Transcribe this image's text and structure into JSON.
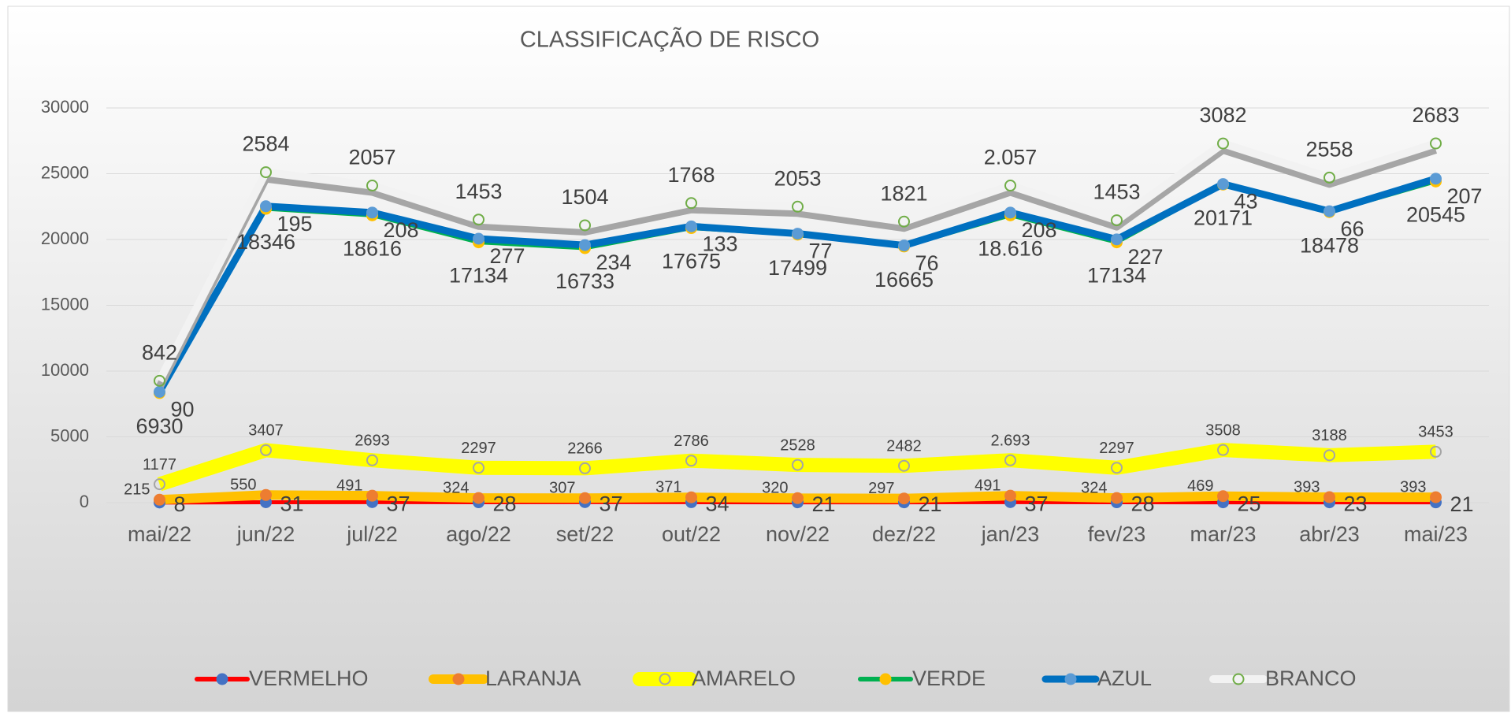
{
  "chart_data": {
    "type": "line",
    "stacked": true,
    "title": "CLASSIFICAÇÃO DE RISCO",
    "categories": [
      "mai/22",
      "jun/22",
      "jul/22",
      "ago/22",
      "set/22",
      "out/22",
      "nov/22",
      "dez/22",
      "jan/23",
      "fev/23",
      "mar/23",
      "abr/23",
      "mai/23"
    ],
    "ylim": [
      0,
      30000
    ],
    "yticks": [
      0,
      5000,
      10000,
      15000,
      20000,
      25000,
      30000
    ],
    "grid": true,
    "legend": "bottom",
    "series": [
      {
        "name": "VERMELHO",
        "color": "#ff0000",
        "marker_color": "#4472c4",
        "values": [
          8,
          31,
          37,
          28,
          37,
          34,
          21,
          21,
          37,
          28,
          25,
          23,
          21
        ]
      },
      {
        "name": "LARANJA",
        "color": "#ffc000",
        "marker_color": "#ed7d31",
        "values": [
          215,
          550,
          491,
          324,
          307,
          371,
          320,
          297,
          491,
          324,
          469,
          393,
          393
        ]
      },
      {
        "name": "AMARELO",
        "color": "#ffff00",
        "marker_color": "#a5a5a5",
        "values": [
          1177,
          3407,
          2693,
          2297,
          2266,
          2786,
          2528,
          2482,
          2693,
          2297,
          3508,
          3188,
          3453
        ],
        "value_labels": [
          "1177",
          "3407",
          "2693",
          "2297",
          "2266",
          "2786",
          "2528",
          "2482",
          "2.693",
          "2297",
          "3508",
          "3188",
          "3453"
        ]
      },
      {
        "name": "VERDE",
        "color": "#00b050",
        "marker_color": "#ffc000",
        "values": [
          6930,
          18346,
          18616,
          17134,
          16733,
          17675,
          17499,
          16665,
          18616,
          17134,
          20171,
          18478,
          20545
        ],
        "value_labels": [
          "6930",
          "18346",
          "18616",
          "17134",
          "16733",
          "17675",
          "17499",
          "16665",
          "18.616",
          "17134",
          "20171",
          "18478",
          "20545"
        ]
      },
      {
        "name": "AZUL",
        "color": "#0070c0",
        "marker_color": "#5b9bd5",
        "values": [
          90,
          195,
          208,
          277,
          234,
          133,
          77,
          76,
          208,
          227,
          43,
          66,
          207
        ]
      },
      {
        "name": "BRANCO",
        "color": "#f2f2f2",
        "marker_color": "#70ad47",
        "values": [
          842,
          2584,
          2057,
          1453,
          1504,
          1768,
          2053,
          1821,
          2057,
          1453,
          3082,
          2558,
          2683
        ],
        "value_labels": [
          "842",
          "2584",
          "2057",
          "1453",
          "1504",
          "1768",
          "2053",
          "1821",
          "2.057",
          "1453",
          "3082",
          "2558",
          "2683"
        ]
      }
    ]
  }
}
